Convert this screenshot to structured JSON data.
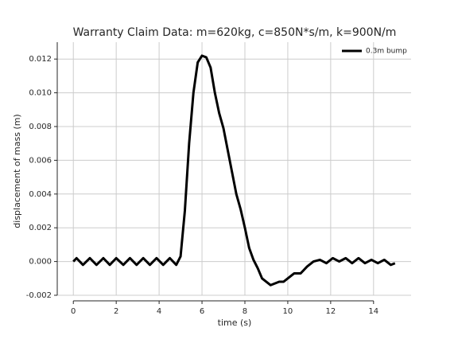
{
  "chart_data": {
    "type": "line",
    "title": "Warranty Claim Data: m=620kg, c=850N*s/m, k=900N/m",
    "xlabel": "time (s)",
    "ylabel": "displacement of mass (m)",
    "x": [
      0,
      0.15,
      0.45,
      0.77,
      1.08,
      1.4,
      1.7,
      2.0,
      2.33,
      2.64,
      2.95,
      3.26,
      3.57,
      3.88,
      4.19,
      4.5,
      4.8,
      5.0,
      5.2,
      5.4,
      5.6,
      5.8,
      6.0,
      6.2,
      6.4,
      6.6,
      6.8,
      7.0,
      7.2,
      7.4,
      7.6,
      7.8,
      8.0,
      8.2,
      8.4,
      8.6,
      8.8,
      9.0,
      9.2,
      9.4,
      9.6,
      9.8,
      10.0,
      10.3,
      10.6,
      10.9,
      11.2,
      11.5,
      11.8,
      12.1,
      12.4,
      12.7,
      13.0,
      13.3,
      13.6,
      13.9,
      14.2,
      14.5,
      14.8,
      15.0
    ],
    "series": [
      {
        "name": "0.3m bump",
        "color": "#000000",
        "values": [
          0,
          0.0002,
          -0.0002,
          0.0002,
          -0.0002,
          0.0002,
          -0.0002,
          0.0002,
          -0.0002,
          0.0002,
          -0.0002,
          0.0002,
          -0.0002,
          0.0002,
          -0.0002,
          0.0002,
          -0.0002,
          0.0003,
          0.003,
          0.007,
          0.01,
          0.0118,
          0.0122,
          0.0121,
          0.0115,
          0.01,
          0.0088,
          0.0079,
          0.0066,
          0.0053,
          0.004,
          0.0031,
          0.002,
          0.0008,
          0.0001,
          -0.0004,
          -0.001,
          -0.0012,
          -0.0014,
          -0.0013,
          -0.0012,
          -0.0012,
          -0.001,
          -0.0007,
          -0.0007,
          -0.0003,
          0,
          0.0001,
          -0.0001,
          0.0002,
          0,
          0.0002,
          -0.0001,
          0.0002,
          -0.0001,
          0.0001,
          -0.0001,
          0.0001,
          -0.0002,
          -0.0001
        ]
      }
    ],
    "xlim": [
      -0.75,
      15.75
    ],
    "ylim": [
      -0.002,
      0.013
    ],
    "xticks": [
      0,
      2,
      4,
      6,
      8,
      10,
      12,
      14
    ],
    "yticks": [
      -0.002,
      {
        "value": 0,
        "label": "0.000"
      },
      0.002,
      0.004,
      0.006,
      0.008,
      {
        "value": 0.01,
        "label": "0.010"
      },
      0.012
    ],
    "grid": true,
    "legend": "upper right"
  }
}
